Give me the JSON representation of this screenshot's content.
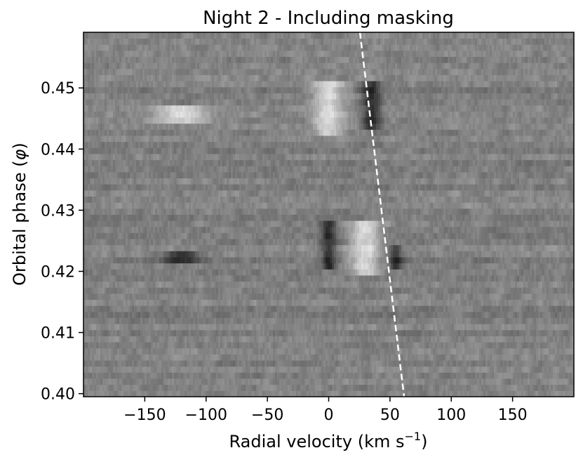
{
  "chart_data": {
    "type": "heatmap",
    "title": "Night 2 - Including masking",
    "xlabel": "Radial velocity (km s",
    "xlabel_sup": "−1",
    "xlabel_close": ")",
    "ylabel": "Orbital phase (",
    "ylabel_symbol": "φ",
    "ylabel_close": ")",
    "xlim": [
      -200,
      200
    ],
    "ylim": [
      0.3995,
      0.4591
    ],
    "xticks": [
      -150,
      -100,
      -50,
      0,
      50,
      100,
      150
    ],
    "xtick_labels": [
      "−150",
      "−100",
      "−50",
      "0",
      "50",
      "100",
      "150"
    ],
    "yticks": [
      0.4,
      0.41,
      0.42,
      0.43,
      0.44,
      0.45
    ],
    "ytick_labels": [
      "0.40",
      "0.41",
      "0.42",
      "0.43",
      "0.44",
      "0.45"
    ],
    "colormap": "gray",
    "grid": false,
    "features": [
      {
        "kind": "bright",
        "rv_center": 0,
        "rv_width": 25,
        "phase_range": [
          0.442,
          0.451
        ]
      },
      {
        "kind": "dark",
        "rv_center": 35,
        "rv_width": 15,
        "phase_range": [
          0.443,
          0.451
        ]
      },
      {
        "kind": "dark",
        "rv_center": 0,
        "rv_width": 12,
        "phase_range": [
          0.42,
          0.428
        ]
      },
      {
        "kind": "bright",
        "rv_center": 30,
        "rv_width": 25,
        "phase_range": [
          0.419,
          0.428
        ]
      },
      {
        "kind": "dark",
        "rv_center": 55,
        "rv_width": 10,
        "phase_range": [
          0.42,
          0.424
        ]
      },
      {
        "kind": "bright",
        "rv_center": -120,
        "rv_width": 40,
        "phase_range": [
          0.444,
          0.447
        ]
      },
      {
        "kind": "dark",
        "rv_center": -120,
        "rv_width": 30,
        "phase_range": [
          0.421,
          0.423
        ]
      }
    ],
    "trail_line": {
      "style": "dashed",
      "color": "#ffffff",
      "x": [
        25.5,
        61.5
      ],
      "y": [
        0.4591,
        0.3995
      ]
    }
  }
}
